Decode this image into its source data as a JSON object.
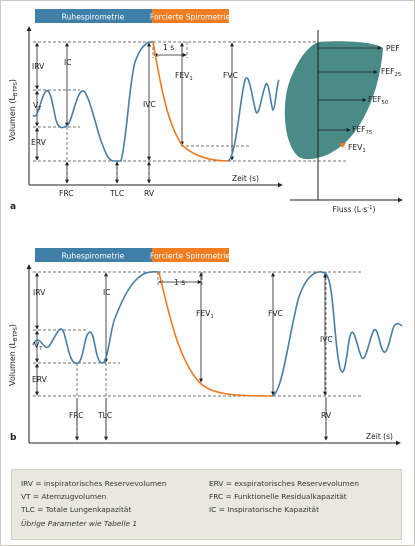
{
  "panel_a": {
    "tag_rest": "Ruhespirometrie",
    "tag_forced": "Forcierte Spirometrie",
    "ylabel_main": "Volumen (L",
    "ylabel_sub": "BTPS",
    "ylabel_end": ")",
    "labels": {
      "irv": "IRV",
      "ic": "IC",
      "vt_main": "V",
      "vt_sub": "T",
      "erv": "ERV",
      "frc": "FRC",
      "tlc": "TLC",
      "ivc": "IVC",
      "rv": "RV",
      "fev1_main": "FEV",
      "fev1_sub": "1",
      "fvc": "FVC",
      "one_s": "1 s"
    },
    "xlabel": "Zeit (s)",
    "panel_letter": "a",
    "loop": {
      "pef": "PEF",
      "fef25_main": "FEF",
      "fef25_sub": "25",
      "fef50_main": "FEF",
      "fef50_sub": "50",
      "fef75_main": "FEF",
      "fef75_sub": "75",
      "fev1_main": "FEV",
      "fev1_sub": "1",
      "xlabel_main": "Fluss (L·s",
      "xlabel_sup": "-1",
      "xlabel_end": ")"
    }
  },
  "panel_b": {
    "tag_rest": "Ruhespirometrie",
    "tag_forced": "Forcierte Spirometrie",
    "ylabel_main": "Volumen (L",
    "ylabel_sub": "BTPS",
    "ylabel_end": ")",
    "labels": {
      "irv": "IRV",
      "ic": "IC",
      "vt_main": "V",
      "vt_sub": "T",
      "erv": "ERV",
      "frc": "FRC",
      "tlc": "TLC",
      "fev1_main": "FEV",
      "fev1_sub": "1",
      "fvc": "FVC",
      "ivc": "IVC",
      "rv": "RV",
      "one_s": "1 s"
    },
    "xlabel": "Zeit (s)",
    "panel_letter": "b"
  },
  "legend": {
    "irv": "IRV = inspiratorisches Reservevolumen",
    "erv": "ERV = exspiratorisches Reservevolumen",
    "vt": "VT = Atemzugvolumen",
    "frc": "FRC = Funktionelle Residualkapazität",
    "tlc": "TLC = Totale Lungenkapazität",
    "ic": "IC = Inspiratorische Kapazität",
    "note": "Übrige Parameter wie Tabelle 1"
  },
  "colors": {
    "blue_curve": "#4a7ea6",
    "orange_curve": "#ef7a22",
    "tag_blue": "#3f7fa8",
    "tag_orange": "#f07d22",
    "loop_fill": "#4a8a87",
    "legend_bg": "#e9e8de"
  }
}
